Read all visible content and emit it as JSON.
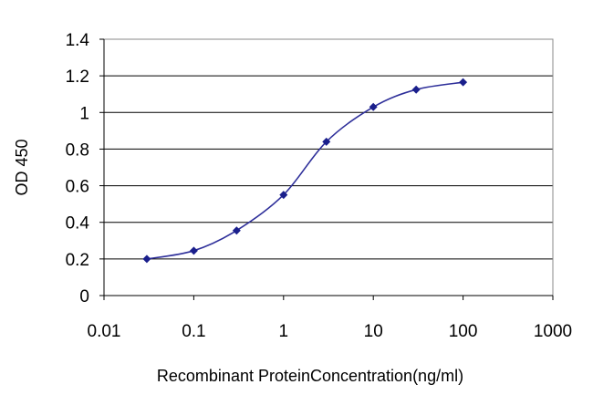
{
  "chart_data": {
    "type": "line",
    "title": "",
    "xlabel": "Recombinant ProteinConcentration(ng/ml)",
    "ylabel": "OD 450",
    "x_scale": "log",
    "xlim": [
      0.01,
      1000
    ],
    "ylim": [
      0,
      1.4
    ],
    "x_ticks": [
      "0.01",
      "0.1",
      "1",
      "10",
      "100",
      "1000"
    ],
    "y_ticks": [
      "0",
      "0.2",
      "0.4",
      "0.6",
      "0.8",
      "1",
      "1.2",
      "1.4"
    ],
    "grid": "horizontal",
    "legend": "none",
    "series": [
      {
        "color": "#2e2f9a",
        "x": [
          0.03,
          0.1,
          0.3,
          1,
          3,
          10,
          30,
          100
        ],
        "y": [
          0.2,
          0.245,
          0.355,
          0.55,
          0.84,
          1.03,
          1.125,
          1.165
        ]
      }
    ]
  }
}
